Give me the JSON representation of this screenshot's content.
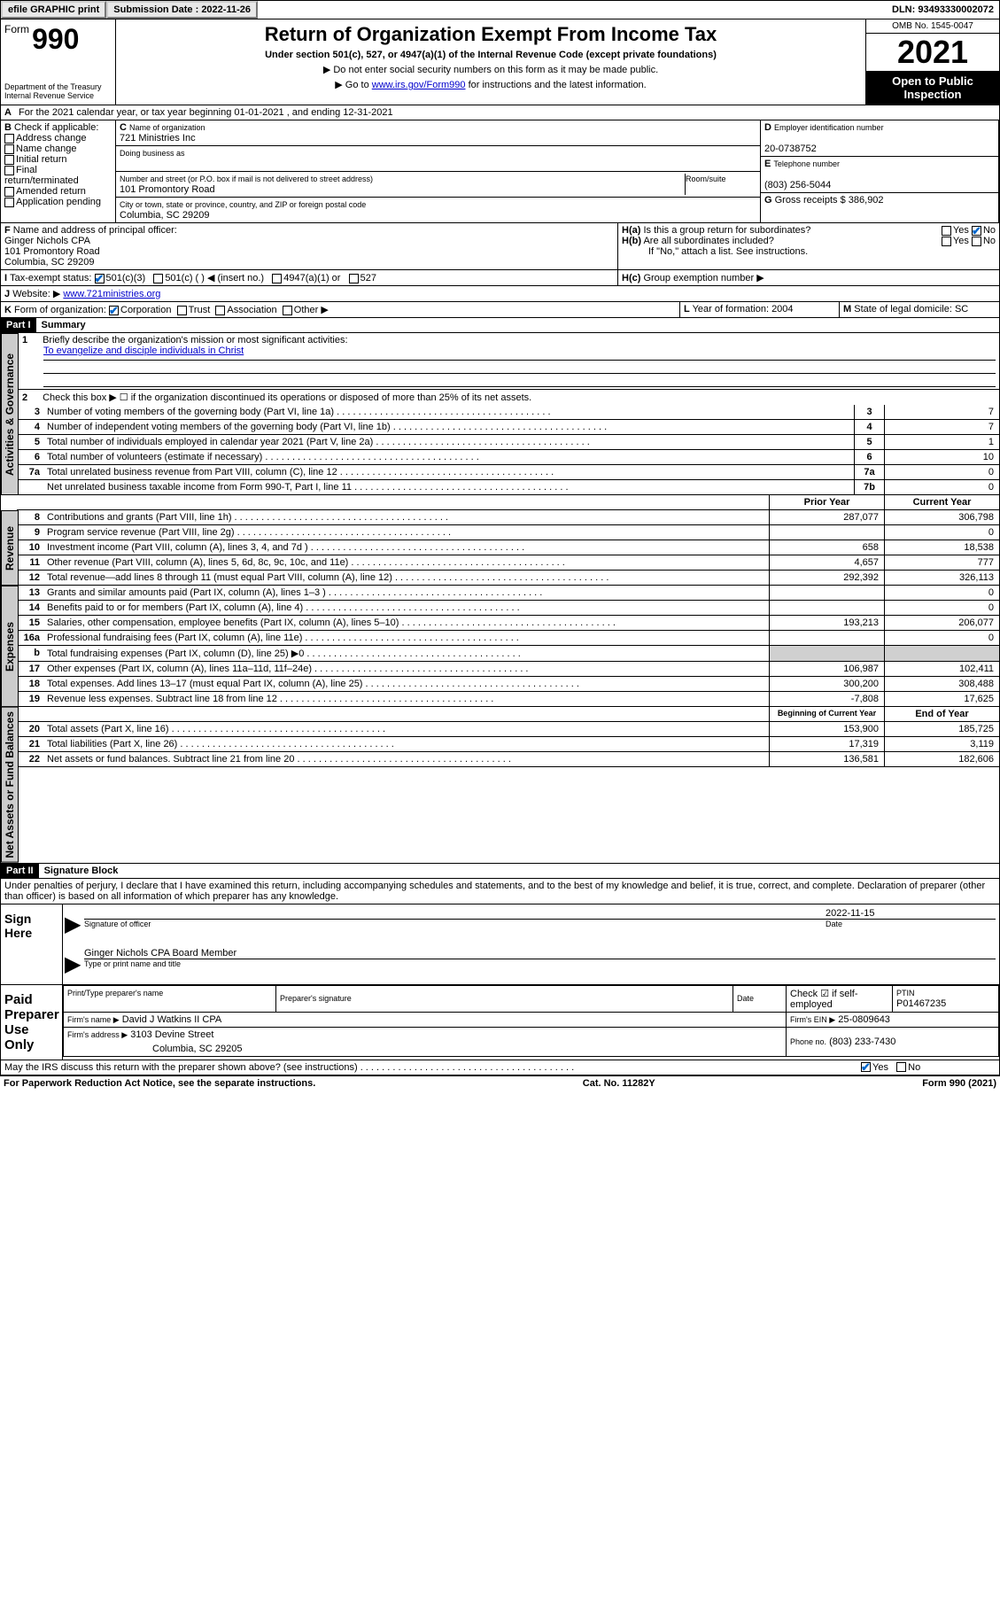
{
  "topbar": {
    "efile": "efile GRAPHIC print",
    "subdate_label": "Submission Date : 2022-11-26",
    "dln": "DLN: 93493330002072"
  },
  "header": {
    "form_word": "Form",
    "form_num": "990",
    "dept": "Department of the Treasury Internal Revenue Service",
    "title": "Return of Organization Exempt From Income Tax",
    "sub1": "Under section 501(c), 527, or 4947(a)(1) of the Internal Revenue Code (except private foundations)",
    "sub2": "▶ Do not enter social security numbers on this form as it may be made public.",
    "sub3_pre": "▶ Go to ",
    "sub3_link": "www.irs.gov/Form990",
    "sub3_post": " for instructions and the latest information.",
    "omb": "OMB No. 1545-0047",
    "year": "2021",
    "inspection": "Open to Public Inspection"
  },
  "A": {
    "text": "For the 2021 calendar year, or tax year beginning 01-01-2021   , and ending 12-31-2021"
  },
  "B": {
    "label": "Check if applicable:",
    "items": [
      "Address change",
      "Name change",
      "Initial return",
      "Final return/terminated",
      "Amended return",
      "Application pending"
    ]
  },
  "C": {
    "name_label": "Name of organization",
    "name": "721 Ministries Inc",
    "dba_label": "Doing business as",
    "addr_label": "Number and street (or P.O. box if mail is not delivered to street address)",
    "room_label": "Room/suite",
    "addr": "101 Promontory Road",
    "city_label": "City or town, state or province, country, and ZIP or foreign postal code",
    "city": "Columbia, SC  29209"
  },
  "D": {
    "label": "Employer identification number",
    "val": "20-0738752"
  },
  "E": {
    "label": "Telephone number",
    "val": "(803) 256-5044"
  },
  "G": {
    "label": "Gross receipts $",
    "val": "386,902"
  },
  "F": {
    "label": "Name and address of principal officer:",
    "name": "Ginger Nichols CPA",
    "addr": "101 Promontory Road",
    "city": "Columbia, SC  29209"
  },
  "H": {
    "a": "Is this a group return for subordinates?",
    "b": "Are all subordinates included?",
    "b_note": "If \"No,\" attach a list. See instructions.",
    "c": "Group exemption number ▶",
    "yes": "Yes",
    "no": "No"
  },
  "I": {
    "label": "Tax-exempt status:",
    "opts": [
      "501(c)(3)",
      "501(c) (  ) ◀ (insert no.)",
      "4947(a)(1) or",
      "527"
    ]
  },
  "J": {
    "label": "Website: ▶",
    "val": "www.721ministries.org"
  },
  "K": {
    "label": "Form of organization:",
    "opts": [
      "Corporation",
      "Trust",
      "Association",
      "Other ▶"
    ]
  },
  "L": {
    "label": "Year of formation:",
    "val": "2004"
  },
  "M": {
    "label": "State of legal domicile:",
    "val": "SC"
  },
  "part1": {
    "bar": "Part I",
    "title": "Summary",
    "q1": "Briefly describe the organization's mission or most significant activities:",
    "mission": "To evangelize and disciple individuals in Christ",
    "q2": "Check this box ▶ ☐  if the organization discontinued its operations or disposed of more than 25% of its net assets.",
    "lines_gov": [
      {
        "n": "3",
        "t": "Number of voting members of the governing body (Part VI, line 1a)",
        "b": "3",
        "v": "7"
      },
      {
        "n": "4",
        "t": "Number of independent voting members of the governing body (Part VI, line 1b)",
        "b": "4",
        "v": "7"
      },
      {
        "n": "5",
        "t": "Total number of individuals employed in calendar year 2021 (Part V, line 2a)",
        "b": "5",
        "v": "1"
      },
      {
        "n": "6",
        "t": "Total number of volunteers (estimate if necessary)",
        "b": "6",
        "v": "10"
      },
      {
        "n": "7a",
        "t": "Total unrelated business revenue from Part VIII, column (C), line 12",
        "b": "7a",
        "v": "0"
      },
      {
        "n": "",
        "t": "Net unrelated business taxable income from Form 990-T, Part I, line 11",
        "b": "7b",
        "v": "0"
      }
    ],
    "col_prior": "Prior Year",
    "col_curr": "Current Year",
    "tab_gov": "Activities & Governance",
    "tab_rev": "Revenue",
    "tab_exp": "Expenses",
    "tab_net": "Net Assets or Fund Balances",
    "lines_rev": [
      {
        "n": "8",
        "t": "Contributions and grants (Part VIII, line 1h)",
        "p": "287,077",
        "c": "306,798"
      },
      {
        "n": "9",
        "t": "Program service revenue (Part VIII, line 2g)",
        "p": "",
        "c": "0"
      },
      {
        "n": "10",
        "t": "Investment income (Part VIII, column (A), lines 3, 4, and 7d )",
        "p": "658",
        "c": "18,538"
      },
      {
        "n": "11",
        "t": "Other revenue (Part VIII, column (A), lines 5, 6d, 8c, 9c, 10c, and 11e)",
        "p": "4,657",
        "c": "777"
      },
      {
        "n": "12",
        "t": "Total revenue—add lines 8 through 11 (must equal Part VIII, column (A), line 12)",
        "p": "292,392",
        "c": "326,113"
      }
    ],
    "lines_exp": [
      {
        "n": "13",
        "t": "Grants and similar amounts paid (Part IX, column (A), lines 1–3 )",
        "p": "",
        "c": "0"
      },
      {
        "n": "14",
        "t": "Benefits paid to or for members (Part IX, column (A), line 4)",
        "p": "",
        "c": "0"
      },
      {
        "n": "15",
        "t": "Salaries, other compensation, employee benefits (Part IX, column (A), lines 5–10)",
        "p": "193,213",
        "c": "206,077"
      },
      {
        "n": "16a",
        "t": "Professional fundraising fees (Part IX, column (A), line 11e)",
        "p": "",
        "c": "0"
      },
      {
        "n": "b",
        "t": "Total fundraising expenses (Part IX, column (D), line 25) ▶0",
        "p": "",
        "c": "",
        "shade": true
      },
      {
        "n": "17",
        "t": "Other expenses (Part IX, column (A), lines 11a–11d, 11f–24e)",
        "p": "106,987",
        "c": "102,411"
      },
      {
        "n": "18",
        "t": "Total expenses. Add lines 13–17 (must equal Part IX, column (A), line 25)",
        "p": "300,200",
        "c": "308,488"
      },
      {
        "n": "19",
        "t": "Revenue less expenses. Subtract line 18 from line 12",
        "p": "-7,808",
        "c": "17,625"
      }
    ],
    "col_beg": "Beginning of Current Year",
    "col_end": "End of Year",
    "lines_net": [
      {
        "n": "20",
        "t": "Total assets (Part X, line 16)",
        "p": "153,900",
        "c": "185,725"
      },
      {
        "n": "21",
        "t": "Total liabilities (Part X, line 26)",
        "p": "17,319",
        "c": "3,119"
      },
      {
        "n": "22",
        "t": "Net assets or fund balances. Subtract line 21 from line 20",
        "p": "136,581",
        "c": "182,606"
      }
    ]
  },
  "part2": {
    "bar": "Part II",
    "title": "Signature Block",
    "decl": "Under penalties of perjury, I declare that I have examined this return, including accompanying schedules and statements, and to the best of my knowledge and belief, it is true, correct, and complete. Declaration of preparer (other than officer) is based on all information of which preparer has any knowledge.",
    "sign_here": "Sign Here",
    "sig_officer": "Signature of officer",
    "sig_date": "2022-11-15",
    "date_lbl": "Date",
    "sig_name": "Ginger Nichols CPA  Board Member",
    "sig_name_lbl": "Type or print name and title",
    "paid": "Paid Preparer Use Only",
    "prep_name_lbl": "Print/Type preparer's name",
    "prep_sig_lbl": "Preparer's signature",
    "prep_date_lbl": "Date",
    "prep_check": "Check ☑ if self-employed",
    "ptin_lbl": "PTIN",
    "ptin": "P01467235",
    "firm_name_lbl": "Firm's name   ▶",
    "firm_name": "David J Watkins II CPA",
    "firm_ein_lbl": "Firm's EIN ▶",
    "firm_ein": "25-0809643",
    "firm_addr_lbl": "Firm's address ▶",
    "firm_addr": "3103 Devine Street",
    "firm_city": "Columbia, SC  29205",
    "firm_phone_lbl": "Phone no.",
    "firm_phone": "(803) 233-7430",
    "discuss": "May the IRS discuss this return with the preparer shown above? (see instructions)",
    "yes": "Yes",
    "no": "No"
  },
  "footer": {
    "left": "For Paperwork Reduction Act Notice, see the separate instructions.",
    "mid": "Cat. No. 11282Y",
    "right": "Form 990 (2021)"
  }
}
